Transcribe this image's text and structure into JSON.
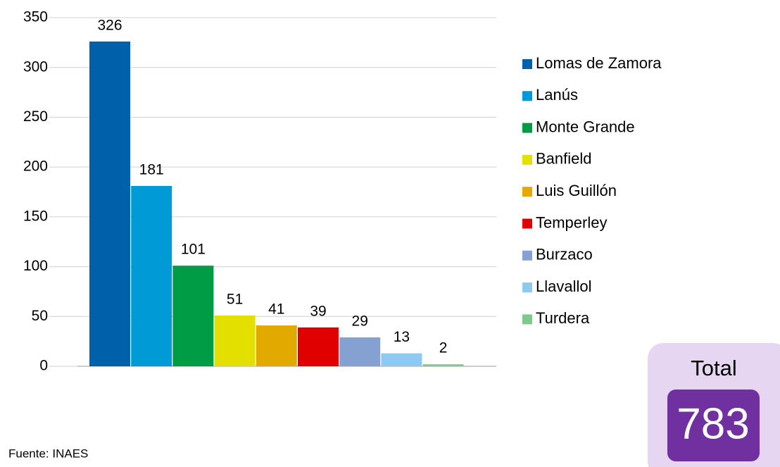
{
  "chart_data": {
    "type": "bar",
    "series": [
      {
        "name": "Lomas de Zamora",
        "color": "#0061ab",
        "values": [
          326
        ]
      },
      {
        "name": "Lanús",
        "color": "#009bd7",
        "values": [
          181
        ]
      },
      {
        "name": "Monte Grande",
        "color": "#009b45",
        "values": [
          101
        ]
      },
      {
        "name": "Banfield",
        "color": "#e3e000",
        "values": [
          51
        ]
      },
      {
        "name": "Luis Guillón",
        "color": "#e2a900",
        "values": [
          41
        ]
      },
      {
        "name": "Temperley",
        "color": "#e10000",
        "values": [
          39
        ]
      },
      {
        "name": "Burzaco",
        "color": "#84a1d1",
        "values": [
          29
        ]
      },
      {
        "name": "Llavallol",
        "color": "#8ec9f1",
        "values": [
          13
        ]
      },
      {
        "name": "Turdera",
        "color": "#7ccb8b",
        "values": [
          2
        ]
      }
    ],
    "ylim": [
      0,
      350
    ],
    "yticks": [
      0,
      50,
      100,
      150,
      200,
      250,
      300,
      350
    ],
    "grid": true,
    "legend": "right"
  },
  "total": {
    "label": "Total",
    "value": 783
  },
  "source": "Fuente: INAES"
}
